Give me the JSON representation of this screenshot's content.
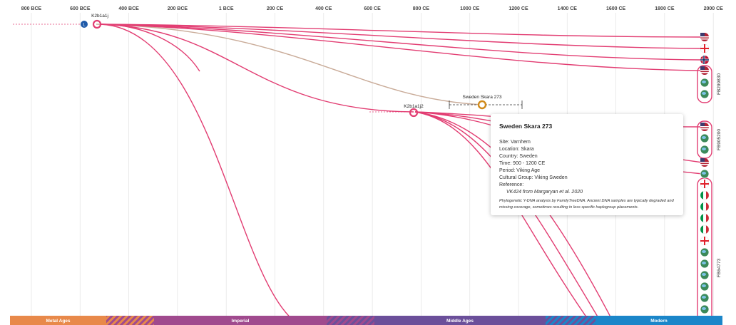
{
  "axis": {
    "ticks": [
      "800 BCE",
      "600 BCE",
      "400 BCE",
      "200 BCE",
      "1 BCE",
      "200 CE",
      "400 CE",
      "600 CE",
      "800 CE",
      "1000 CE",
      "1200 CE",
      "1400 CE",
      "1600 CE",
      "1800 CE",
      "2000 CE"
    ]
  },
  "nodes": {
    "root": "K2b1a1j",
    "mid": "K2b1a1j2",
    "ancient_sample": "Sweden Skara 273",
    "root_badge": "L"
  },
  "kits": [
    "FB299830",
    "FB905200",
    "FB64773"
  ],
  "eras": [
    {
      "label": "Metal Ages",
      "color": "#e8894a"
    },
    {
      "label": "Imperial",
      "color": "#a04a8e"
    },
    {
      "label": "Middle Ages",
      "color": "#6b4f9a"
    },
    {
      "label": "Modern",
      "color": "#1b86c9"
    }
  ],
  "tooltip": {
    "title": "Sweden Skara 273",
    "site": "Site: Varnhem",
    "location": "Location: Skara",
    "country": "Country: Sweden",
    "time": "Time: 900 - 1200 CE",
    "period": "Period: Viking Age",
    "culture": "Cultural Group: Viking Sweden",
    "reference_label": "Reference:",
    "reference": "VK424 from Margaryan et al. 2020",
    "note": "Phylogenetic Y-DNA analysis by FamilyTreeDNA. Ancient DNA samples are typically degraded and missing coverage, sometimes resulting in less specific haplogroup placements."
  },
  "colors": {
    "branch": "#e23d72",
    "ancient_branch": "#c9ab98",
    "gridline": "#e6e6e6",
    "sample_marker": "#d08a1a",
    "root_badge": "#1e5aa8"
  },
  "icons": [
    "flag-us-icon",
    "flag-georgia-icon",
    "flag-norway-icon",
    "flag-us-icon",
    "globe-icon",
    "globe-icon",
    "flag-us-icon",
    "globe-icon",
    "globe-icon",
    "flag-us-icon",
    "globe-icon",
    "flag-georgia-icon",
    "flag-italy-icon",
    "flag-italy-icon",
    "flag-italy-icon",
    "flag-italy-icon",
    "flag-georgia-icon",
    "globe-icon",
    "globe-icon",
    "globe-icon",
    "globe-icon",
    "globe-icon",
    "globe-icon",
    "globe-icon"
  ]
}
